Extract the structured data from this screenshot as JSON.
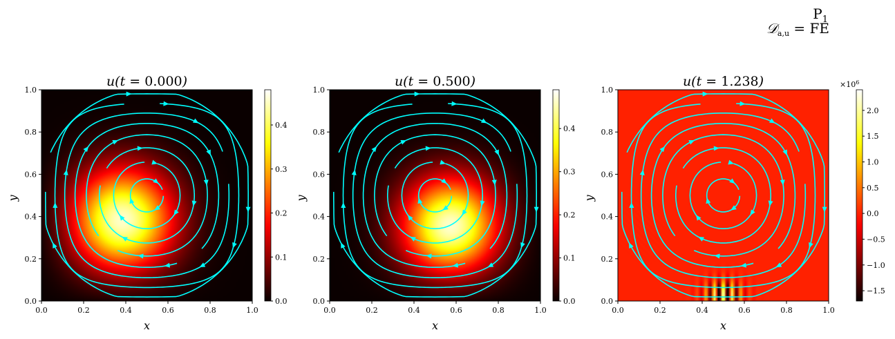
{
  "figure": {
    "corner_line1": "P",
    "corner_line1_sub": "1",
    "corner_line2": "𝒟",
    "corner_line2_sub": "a,u",
    "corner_line2_rest": " = FE"
  },
  "colors": {
    "streamline": "#00ffff",
    "colormap": "hot"
  },
  "chart_data": [
    {
      "type": "heatmap",
      "title_pre": "u(t = ",
      "title_val": "0.000",
      "title_post": ")",
      "xlabel": "x",
      "ylabel": "y",
      "xlim": [
        0,
        1
      ],
      "ylim": [
        0,
        1
      ],
      "xticks": [
        "0.0",
        "0.2",
        "0.4",
        "0.6",
        "0.8",
        "1.0"
      ],
      "yticks": [
        "0.0",
        "0.2",
        "0.4",
        "0.6",
        "0.8",
        "1.0"
      ],
      "field": {
        "kind": "gaussian",
        "cx": 0.37,
        "cy": 0.37,
        "sigma": 0.18,
        "peak": 0.48
      },
      "colorbar": {
        "min": 0.0,
        "max": 0.48,
        "ticks": [
          "0.0",
          "0.1",
          "0.2",
          "0.3",
          "0.4"
        ],
        "tick_values": [
          0.0,
          0.1,
          0.2,
          0.3,
          0.4
        ],
        "multiplier": ""
      },
      "streamlines": "rotating cellular flow, clockwise about (0.5, 0.5)"
    },
    {
      "type": "heatmap",
      "title_pre": "u(t = ",
      "title_val": "0.500",
      "title_post": ")",
      "xlabel": "x",
      "ylabel": "y",
      "xlim": [
        0,
        1
      ],
      "ylim": [
        0,
        1
      ],
      "xticks": [
        "0.0",
        "0.2",
        "0.4",
        "0.6",
        "0.8",
        "1.0"
      ],
      "yticks": [
        "0.0",
        "0.2",
        "0.4",
        "0.6",
        "0.8",
        "1.0"
      ],
      "field": {
        "kind": "gaussian",
        "cx": 0.58,
        "cy": 0.34,
        "sigma": 0.17,
        "peak": 0.49
      },
      "colorbar": {
        "min": 0.0,
        "max": 0.49,
        "ticks": [
          "0.0",
          "0.1",
          "0.2",
          "0.3",
          "0.4"
        ],
        "tick_values": [
          0.0,
          0.1,
          0.2,
          0.3,
          0.4
        ],
        "multiplier": ""
      },
      "streamlines": "rotating cellular flow, clockwise about (0.5, 0.5)"
    },
    {
      "type": "heatmap",
      "title_pre": "u(t = ",
      "title_val": "1.238",
      "title_post": ")",
      "xlabel": "x",
      "ylabel": "y",
      "xlim": [
        0,
        1
      ],
      "ylim": [
        0,
        1
      ],
      "xticks": [
        "0.0",
        "0.2",
        "0.4",
        "0.6",
        "0.8",
        "1.0"
      ],
      "yticks": [
        "0.0",
        "0.2",
        "0.4",
        "0.6",
        "0.8",
        "1.0"
      ],
      "field": {
        "kind": "oscillation",
        "background": 0.0,
        "cx": 0.5,
        "cy": 0.03,
        "amplitude": 2.4
      },
      "colorbar": {
        "min": -1.7,
        "max": 2.4,
        "ticks": [
          "−1.5",
          "−1.0",
          "−0.5",
          "0.0",
          "0.5",
          "1.0",
          "1.5",
          "2.0"
        ],
        "tick_values": [
          -1.5,
          -1.0,
          -0.5,
          0.0,
          0.5,
          1.0,
          1.5,
          2.0
        ],
        "multiplier": "×10",
        "multiplier_exp": "6"
      },
      "streamlines": "rotating cellular flow, clockwise about (0.5, 0.5)"
    }
  ]
}
